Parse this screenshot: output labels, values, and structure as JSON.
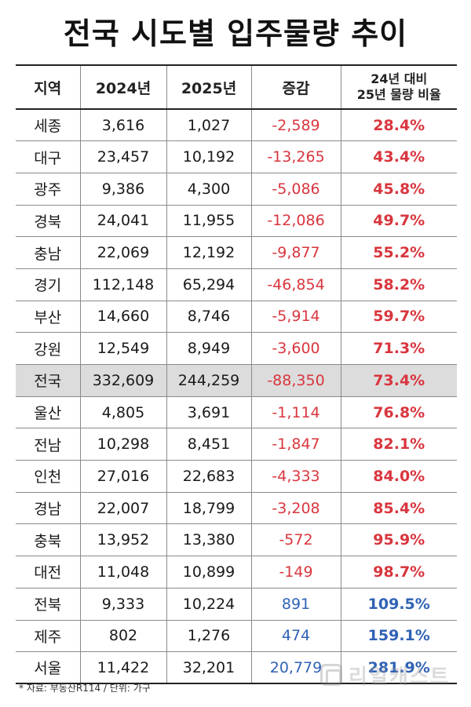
{
  "title": "전국 시도별 입주물량 추이",
  "table": {
    "headers": {
      "region": "지역",
      "y2024": "2024년",
      "y2025": "2025년",
      "change": "증감",
      "ratio_line1": "24년 대비",
      "ratio_line2": "25년 물량 비율"
    },
    "rows": [
      {
        "region": "세종",
        "y2024": "3,616",
        "y2025": "1,027",
        "change": "-2,589",
        "ratio": "28.4%",
        "trend": "neg"
      },
      {
        "region": "대구",
        "y2024": "23,457",
        "y2025": "10,192",
        "change": "-13,265",
        "ratio": "43.4%",
        "trend": "neg"
      },
      {
        "region": "광주",
        "y2024": "9,386",
        "y2025": "4,300",
        "change": "-5,086",
        "ratio": "45.8%",
        "trend": "neg"
      },
      {
        "region": "경북",
        "y2024": "24,041",
        "y2025": "11,955",
        "change": "-12,086",
        "ratio": "49.7%",
        "trend": "neg"
      },
      {
        "region": "충남",
        "y2024": "22,069",
        "y2025": "12,192",
        "change": "-9,877",
        "ratio": "55.2%",
        "trend": "neg"
      },
      {
        "region": "경기",
        "y2024": "112,148",
        "y2025": "65,294",
        "change": "-46,854",
        "ratio": "58.2%",
        "trend": "neg"
      },
      {
        "region": "부산",
        "y2024": "14,660",
        "y2025": "8,746",
        "change": "-5,914",
        "ratio": "59.7%",
        "trend": "neg"
      },
      {
        "region": "강원",
        "y2024": "12,549",
        "y2025": "8,949",
        "change": "-3,600",
        "ratio": "71.3%",
        "trend": "neg"
      },
      {
        "region": "전국",
        "y2024": "332,609",
        "y2025": "244,259",
        "change": "-88,350",
        "ratio": "73.4%",
        "trend": "neg",
        "highlight": true
      },
      {
        "region": "울산",
        "y2024": "4,805",
        "y2025": "3,691",
        "change": "-1,114",
        "ratio": "76.8%",
        "trend": "neg"
      },
      {
        "region": "전남",
        "y2024": "10,298",
        "y2025": "8,451",
        "change": "-1,847",
        "ratio": "82.1%",
        "trend": "neg"
      },
      {
        "region": "인천",
        "y2024": "27,016",
        "y2025": "22,683",
        "change": "-4,333",
        "ratio": "84.0%",
        "trend": "neg"
      },
      {
        "region": "경남",
        "y2024": "22,007",
        "y2025": "18,799",
        "change": "-3,208",
        "ratio": "85.4%",
        "trend": "neg"
      },
      {
        "region": "충북",
        "y2024": "13,952",
        "y2025": "13,380",
        "change": "-572",
        "ratio": "95.9%",
        "trend": "neg"
      },
      {
        "region": "대전",
        "y2024": "11,048",
        "y2025": "10,899",
        "change": "-149",
        "ratio": "98.7%",
        "trend": "neg"
      },
      {
        "region": "전북",
        "y2024": "9,333",
        "y2025": "10,224",
        "change": "891",
        "ratio": "109.5%",
        "trend": "pos"
      },
      {
        "region": "제주",
        "y2024": "802",
        "y2025": "1,276",
        "change": "474",
        "ratio": "159.1%",
        "trend": "pos"
      },
      {
        "region": "서울",
        "y2024": "11,422",
        "y2025": "32,201",
        "change": "20,779",
        "ratio": "281.9%",
        "trend": "pos"
      }
    ]
  },
  "footnote": "* 자료: 부동산R114 / 단위: 가구",
  "watermark": "리얼캐스트",
  "colors": {
    "negative": "#d9363e",
    "positive": "#2f62b5",
    "highlight_row": "#dcdcdc"
  }
}
